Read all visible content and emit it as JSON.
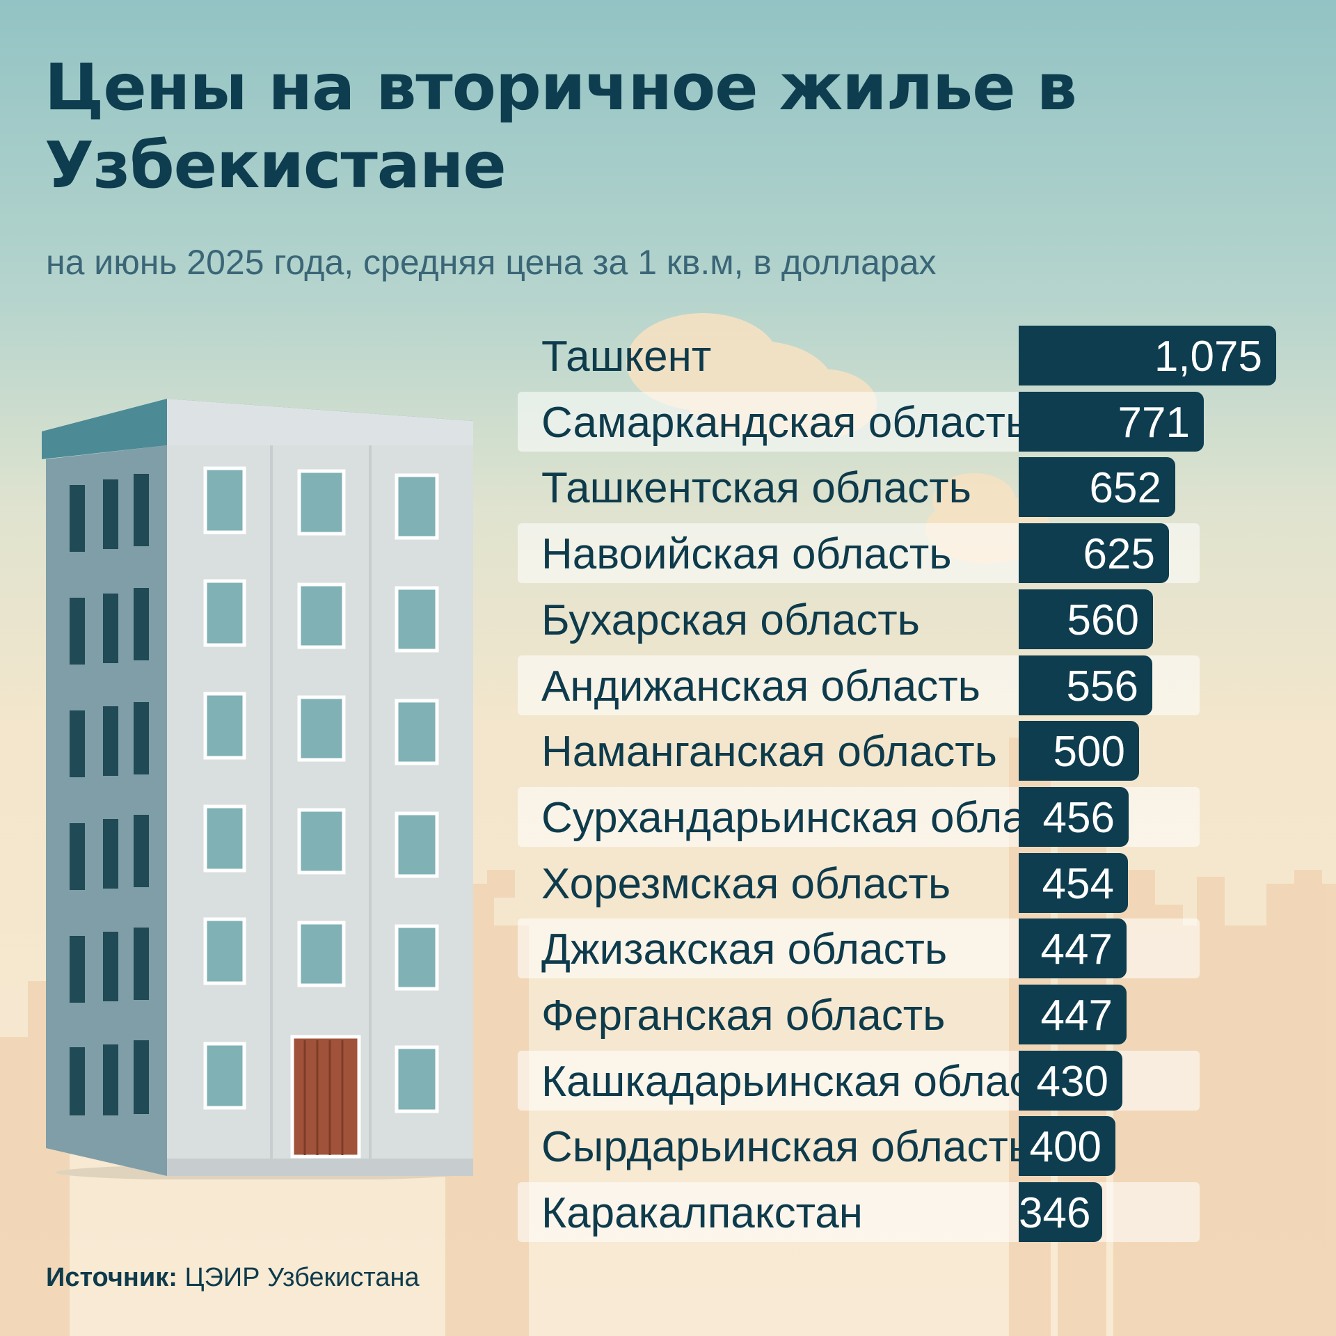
{
  "title": "Цены на вторичное жилье в Узбекистане",
  "subtitle": "на июнь 2025 года, средняя цена за 1 кв.м, в долларах",
  "source": {
    "label": "Источник:",
    "value": "ЦЭИР Узбекистана"
  },
  "colors": {
    "bar": "#0d3d4f",
    "bar_text": "#ffffff",
    "label_text": "#0e3b4c",
    "row_band": "#ffffff"
  },
  "chart_data": {
    "type": "bar",
    "orientation": "horizontal",
    "title": "Цены на вторичное жилье в Узбекистане",
    "subtitle": "на июнь 2025 года, средняя цена за 1 кв.м, в долларах",
    "xlabel": "",
    "ylabel": "",
    "xlim": [
      0,
      1075
    ],
    "grid": false,
    "categories": [
      "Ташкент",
      "Самаркандская область",
      "Ташкентская область",
      "Навоийская область",
      "Бухарская область",
      "Андижанская область",
      "Наманганская область",
      "Сурхандарьинская область",
      "Хорезмская область",
      "Джизакская область",
      "Ферганская область",
      "Кашкадарьинская область",
      "Сырдарьинская область",
      "Каракалпакстан"
    ],
    "values": [
      1075,
      771,
      652,
      625,
      560,
      556,
      500,
      456,
      454,
      447,
      447,
      430,
      400,
      346
    ],
    "value_labels": [
      "1,075",
      "771",
      "652",
      "625",
      "560",
      "556",
      "500",
      "456",
      "454",
      "447",
      "447",
      "430",
      "400",
      "346"
    ]
  }
}
